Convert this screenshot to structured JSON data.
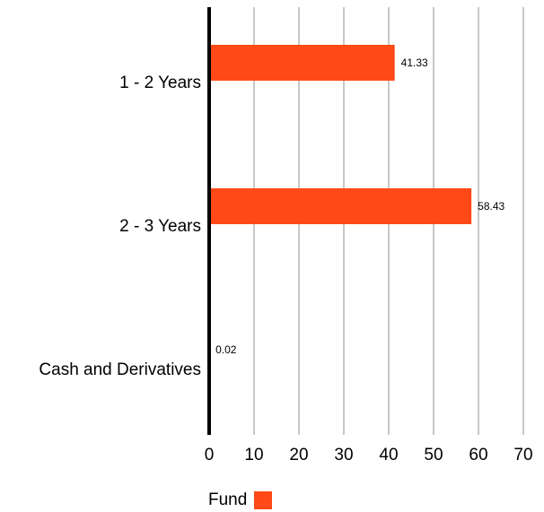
{
  "chart_data": {
    "type": "bar",
    "orientation": "horizontal",
    "categories": [
      "1 - 2 Years",
      "2 - 3 Years",
      "Cash and Derivatives"
    ],
    "series": [
      {
        "name": "Fund",
        "values": [
          41.33,
          58.43,
          0.02
        ],
        "value_labels": [
          "41.33",
          "58.43",
          "0.02"
        ],
        "color": "#FF4A17"
      }
    ],
    "xlim": [
      0,
      70
    ],
    "x_ticks": [
      0,
      10,
      20,
      30,
      40,
      50,
      60,
      70
    ],
    "x_tick_labels": [
      "0",
      "10",
      "20",
      "30",
      "40",
      "50",
      "60",
      "70"
    ],
    "grid": true,
    "grid_color": "#c8c8c8",
    "axis_color": "#000000",
    "legend_position": "bottom"
  }
}
